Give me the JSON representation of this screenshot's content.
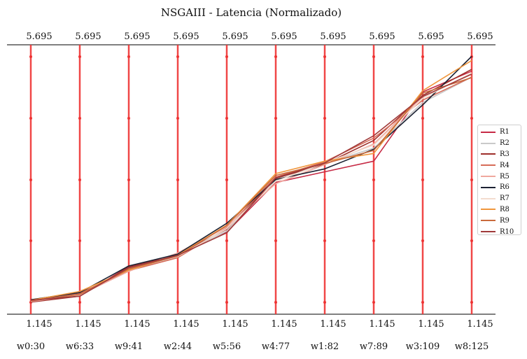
{
  "chart_data": {
    "type": "line",
    "title": "NSGAIII - Latencia (Normalizado)",
    "axes": [
      "w0:30",
      "w6:33",
      "w9:41",
      "w2:44",
      "w5:56",
      "w4:77",
      "w1:82",
      "w7:89",
      "w3:109",
      "w8:125"
    ],
    "top_tick_labels": [
      "5.695",
      "5.695",
      "5.695",
      "5.695",
      "5.695",
      "5.695",
      "5.695",
      "5.695",
      "5.695",
      "5.695"
    ],
    "bottom_tick_labels": [
      "1.145",
      "1.145",
      "1.145",
      "1.145",
      "1.145",
      "1.145",
      "1.145",
      "1.145",
      "1.145",
      "1.145"
    ],
    "ylim": [
      1.145,
      5.695
    ],
    "axis_color": "#ee3333",
    "series": [
      {
        "name": "R1",
        "color": "#c62a45",
        "values": [
          1.37,
          1.45,
          1.95,
          2.14,
          2.53,
          3.37,
          3.55,
          3.73,
          4.9,
          5.25
        ]
      },
      {
        "name": "R2",
        "color": "#c9c9c9",
        "values": [
          1.38,
          1.48,
          1.9,
          2.12,
          2.55,
          3.4,
          3.69,
          3.95,
          4.72,
          5.15
        ]
      },
      {
        "name": "R3",
        "color": "#9e2f2a",
        "values": [
          1.35,
          1.45,
          1.94,
          2.15,
          2.58,
          3.44,
          3.68,
          4.08,
          4.84,
          5.28
        ]
      },
      {
        "name": "R4",
        "color": "#d66b58",
        "values": [
          1.38,
          1.5,
          1.88,
          2.1,
          2.6,
          3.46,
          3.72,
          4.12,
          4.76,
          5.15
        ]
      },
      {
        "name": "R5",
        "color": "#f0a89e",
        "values": [
          1.36,
          1.47,
          1.87,
          2.18,
          2.62,
          3.35,
          3.67,
          4.02,
          4.82,
          5.2
        ]
      },
      {
        "name": "R6",
        "color": "#1c2233",
        "values": [
          1.39,
          1.51,
          1.96,
          2.16,
          2.68,
          3.42,
          3.6,
          3.93,
          4.68,
          5.5
        ]
      },
      {
        "name": "R7",
        "color": "#f3dccf",
        "values": [
          1.37,
          1.47,
          1.92,
          2.12,
          2.59,
          3.39,
          3.7,
          4.0,
          4.79,
          5.22
        ]
      },
      {
        "name": "R8",
        "color": "#f0963c",
        "values": [
          1.38,
          1.53,
          1.89,
          2.14,
          2.65,
          3.52,
          3.73,
          3.86,
          4.92,
          5.43
        ]
      },
      {
        "name": "R9",
        "color": "#c96a3c",
        "values": [
          1.37,
          1.48,
          1.91,
          2.13,
          2.64,
          3.49,
          3.69,
          3.91,
          4.88,
          5.14
        ]
      },
      {
        "name": "R10",
        "color": "#a03a3a",
        "values": [
          1.38,
          1.45,
          1.93,
          2.14,
          2.52,
          3.45,
          3.7,
          4.16,
          4.82,
          5.2
        ]
      }
    ]
  }
}
